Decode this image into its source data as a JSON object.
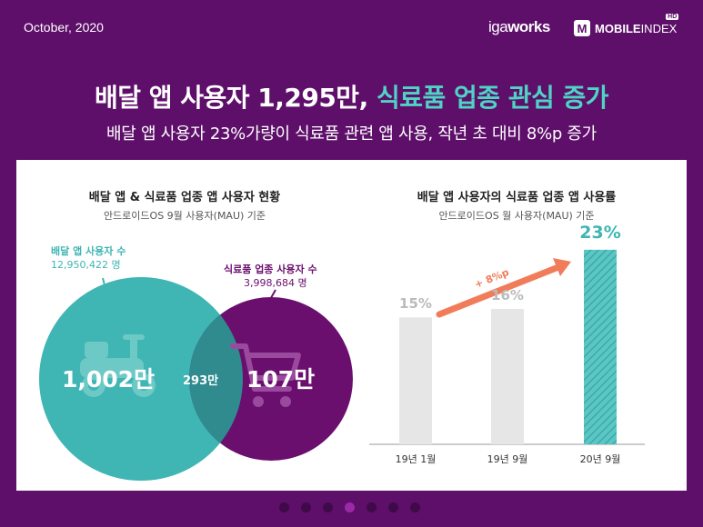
{
  "header": {
    "date": "October, 2020",
    "logo_iga_light": "iga",
    "logo_iga_bold": "works",
    "logo_mobile": "MOBILE",
    "logo_index": "INDEX",
    "logo_hd": "HD",
    "logo_m": "M"
  },
  "title": {
    "main": "배달 앱 사용자 1,295만,",
    "accent": "식료품 업종 관심 증가",
    "subtitle": "배달 앱 사용자 23%가량이 식료품 관련 앱 사용, 작년 초 대비 8%p 증가"
  },
  "colors": {
    "background": "#5e0f6a",
    "teal": "#3fb5b4",
    "purple": "#6b0f6e",
    "bar_gray": "#e6e6e6",
    "arrow": "#f07c5a"
  },
  "chart_data": [
    {
      "type": "venn",
      "title": "배달 앱 & 식료품 업종 앱 사용자 현황",
      "subtitle": "안드로이드OS 9월 사용자(MAU) 기준",
      "sets": [
        {
          "label": "배달 앱 사용자 수",
          "total": "12,950,422 명",
          "only": "1,002만",
          "color": "#3fb5b4",
          "icon": "scooter-icon"
        },
        {
          "label": "식료품 업종 사용자 수",
          "total": "3,998,684 명",
          "only": "107만",
          "color": "#6b0f6e",
          "icon": "cart-icon"
        }
      ],
      "overlap": "293만"
    },
    {
      "type": "bar",
      "title": "배달 앱 사용자의 식료품 업종 앱 사용률",
      "subtitle": "안드로이드OS 월 사용자(MAU) 기준",
      "categories": [
        "19년 1월",
        "19년 9월",
        "20년 9월"
      ],
      "values": [
        15,
        16,
        23
      ],
      "value_labels": [
        "15%",
        "16%",
        "23%"
      ],
      "highlight_index": 2,
      "annotation": "+ 8%p",
      "ylim": [
        0,
        25
      ]
    }
  ],
  "pagination": {
    "count": 7,
    "active": 3
  }
}
